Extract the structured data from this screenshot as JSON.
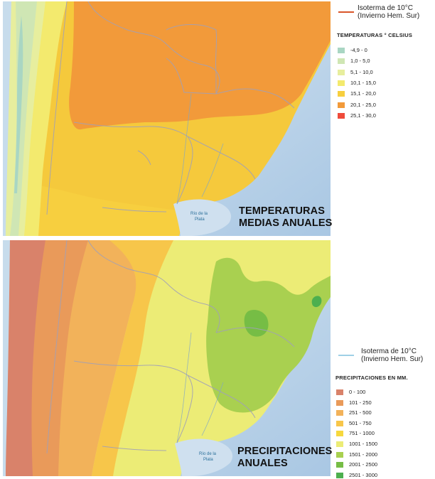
{
  "maps": {
    "temperature": {
      "title_line1": "TEMPERATURAS",
      "title_line2": "MEDIAS ANUALES"
    },
    "precipitation": {
      "title_line1": "PRECIPITACIONES",
      "title_line2": "ANUALES"
    }
  },
  "place_labels": {
    "rio_de_la_plata_line1": "Río de la",
    "rio_de_la_plata_line2": "Plata"
  },
  "temperature_legend": {
    "isotherm_line1": "Isoterma de 10°C",
    "isotherm_line2": "(Invierno Hem. Sur)",
    "isotherm_color": "#d9562a",
    "heading": "TEMPERATURAS ° CELSIUS",
    "items": [
      {
        "label": "-4,9 - 0",
        "color": "#a9d6c3"
      },
      {
        "label": "1,0 - 5,0",
        "color": "#cfe6b4"
      },
      {
        "label": "5,1 - 10,0",
        "color": "#e7ee9e"
      },
      {
        "label": "10,1 - 15,0",
        "color": "#f3ea6e"
      },
      {
        "label": "15,1 - 20,0",
        "color": "#f7cf3f"
      },
      {
        "label": "20,1 - 25,0",
        "color": "#f29a3a"
      },
      {
        "label": "25,1 - 30,0",
        "color": "#ef4b3b"
      }
    ]
  },
  "precipitation_legend": {
    "isotherm_line1": "Isoterma de 10°C",
    "isotherm_line2": "(Invierno Hem. Sur)",
    "isotherm_color": "#9fd0e6",
    "heading": "PRECIPITACIONES EN MM.",
    "items": [
      {
        "label": "0 - 100",
        "color": "#d9826a"
      },
      {
        "label": "101 - 250",
        "color": "#e99a5a"
      },
      {
        "label": "251 - 500",
        "color": "#f2b25a"
      },
      {
        "label": "501 - 750",
        "color": "#f7c64a"
      },
      {
        "label": "751 - 1000",
        "color": "#f6d83e"
      },
      {
        "label": "1001 - 1500",
        "color": "#ecec76"
      },
      {
        "label": "1501 - 2000",
        "color": "#a9d050"
      },
      {
        "label": "2001 - 2500",
        "color": "#76bd45"
      },
      {
        "label": "2501 - 3000",
        "color": "#4daf4f"
      }
    ]
  }
}
